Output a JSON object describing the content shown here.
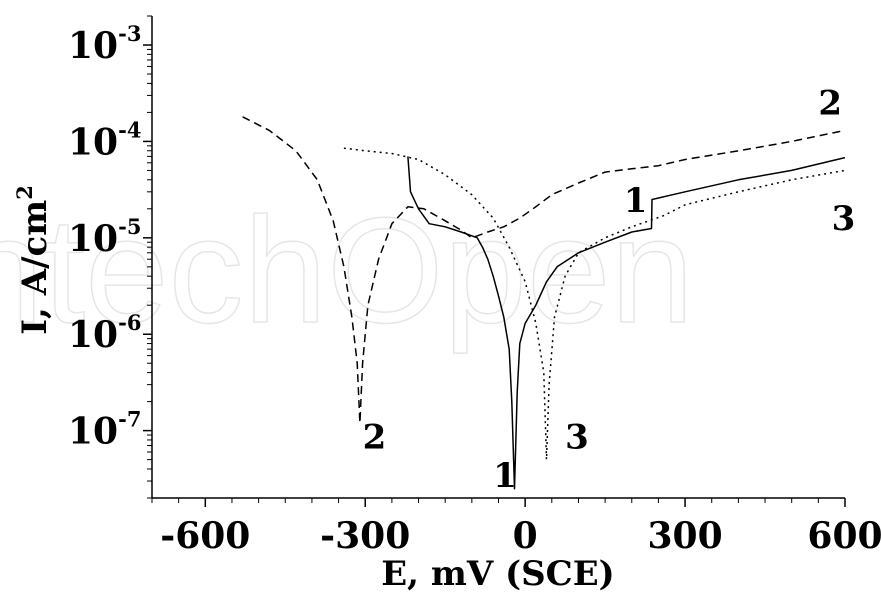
{
  "chart_data": {
    "type": "line",
    "xlabel": "E, mV (SCE)",
    "ylabel": "I, A/cm",
    "ylabel_sup": "2",
    "xlim": [
      -700,
      600
    ],
    "ylim": [
      2e-08,
      0.002
    ],
    "y_scale": "log",
    "x_ticks": [
      {
        "value": -600,
        "label": "-600"
      },
      {
        "value": -300,
        "label": "-300"
      },
      {
        "value": 0,
        "label": "0"
      },
      {
        "value": 300,
        "label": "300"
      },
      {
        "value": 600,
        "label": "600"
      }
    ],
    "y_ticks": [
      {
        "value": 1e-07,
        "base": "10",
        "exp": "-7"
      },
      {
        "value": 1e-06,
        "base": "10",
        "exp": "-6"
      },
      {
        "value": 1e-05,
        "base": "10",
        "exp": "-5"
      },
      {
        "value": 0.0001,
        "base": "10",
        "exp": "-4"
      },
      {
        "value": 0.001,
        "base": "10",
        "exp": "-3"
      }
    ],
    "grid": false,
    "legend": "none",
    "watermark_text": "ntechOpen",
    "series": [
      {
        "label": "1",
        "style": "solid",
        "points": [
          [
            -220,
            7e-05
          ],
          [
            -215,
            3e-05
          ],
          [
            -200,
            2e-05
          ],
          [
            -180,
            1.4e-05
          ],
          [
            -150,
            1.3e-05
          ],
          [
            -120,
            1.15e-05
          ],
          [
            -100,
            1.05e-05
          ],
          [
            -90,
            1e-05
          ],
          [
            -80,
            8e-06
          ],
          [
            -70,
            6e-06
          ],
          [
            -60,
            4e-06
          ],
          [
            -50,
            2.5e-06
          ],
          [
            -40,
            1.5e-06
          ],
          [
            -30,
            7e-07
          ],
          [
            -25,
            2e-07
          ],
          [
            -20,
            2.5e-08
          ],
          [
            -15,
            2.5e-07
          ],
          [
            -10,
            8e-07
          ],
          [
            0,
            1.3e-06
          ],
          [
            20,
            2e-06
          ],
          [
            40,
            3.5e-06
          ],
          [
            60,
            5e-06
          ],
          [
            100,
            7e-06
          ],
          [
            150,
            9e-06
          ],
          [
            200,
            1.15e-05
          ],
          [
            237,
            1.25e-05
          ],
          [
            238,
            2.5e-05
          ],
          [
            300,
            3e-05
          ],
          [
            400,
            4e-05
          ],
          [
            500,
            5e-05
          ],
          [
            600,
            6.8e-05
          ]
        ]
      },
      {
        "label": "2",
        "style": "dashed",
        "points": [
          [
            -530,
            0.00018
          ],
          [
            -480,
            0.00013
          ],
          [
            -430,
            8e-05
          ],
          [
            -390,
            4e-05
          ],
          [
            -360,
            1.5e-05
          ],
          [
            -340,
            5e-06
          ],
          [
            -325,
            1.5e-06
          ],
          [
            -315,
            5e-07
          ],
          [
            -310,
            1.2e-07
          ],
          [
            -305,
            5e-07
          ],
          [
            -295,
            2e-06
          ],
          [
            -275,
            6e-06
          ],
          [
            -250,
            1.4e-05
          ],
          [
            -220,
            2.1e-05
          ],
          [
            -190,
            2e-05
          ],
          [
            -150,
            1.5e-05
          ],
          [
            -120,
            1.2e-05
          ],
          [
            -100,
            1e-05
          ],
          [
            -70,
            1.15e-05
          ],
          [
            -40,
            1.3e-05
          ],
          [
            -10,
            1.6e-05
          ],
          [
            20,
            2.1e-05
          ],
          [
            50,
            2.8e-05
          ],
          [
            100,
            3.7e-05
          ],
          [
            150,
            4.8e-05
          ],
          [
            200,
            5.2e-05
          ],
          [
            250,
            5.6e-05
          ],
          [
            300,
            6.5e-05
          ],
          [
            400,
            8e-05
          ],
          [
            500,
            0.0001
          ],
          [
            600,
            0.00013
          ]
        ]
      },
      {
        "label": "3",
        "style": "dotted",
        "points": [
          [
            -340,
            8.5e-05
          ],
          [
            -300,
            8e-05
          ],
          [
            -250,
            7.5e-05
          ],
          [
            -200,
            6.5e-05
          ],
          [
            -150,
            4.5e-05
          ],
          [
            -100,
            2.8e-05
          ],
          [
            -60,
            1.6e-05
          ],
          [
            -30,
            8e-06
          ],
          [
            0,
            3.5e-06
          ],
          [
            20,
            1.3e-06
          ],
          [
            35,
            4e-07
          ],
          [
            40,
            5e-08
          ],
          [
            45,
            3e-07
          ],
          [
            55,
            1.5e-06
          ],
          [
            75,
            4e-06
          ],
          [
            100,
            7e-06
          ],
          [
            150,
            1e-05
          ],
          [
            200,
            1.3e-05
          ],
          [
            260,
            1.7e-05
          ],
          [
            300,
            2.2e-05
          ],
          [
            400,
            3e-05
          ],
          [
            500,
            4e-05
          ],
          [
            600,
            5e-05
          ]
        ]
      }
    ],
    "annotations": [
      {
        "text": "1",
        "x": -60,
        "y": 2.6e-08
      },
      {
        "text": "1",
        "x": 185,
        "y": 1.85e-05
      },
      {
        "text": "2",
        "x": -305,
        "y": 6.5e-08
      },
      {
        "text": "2",
        "x": 550,
        "y": 0.00019
      },
      {
        "text": "3",
        "x": 75,
        "y": 6.5e-08
      },
      {
        "text": "3",
        "x": 575,
        "y": 1.2e-05
      }
    ]
  }
}
